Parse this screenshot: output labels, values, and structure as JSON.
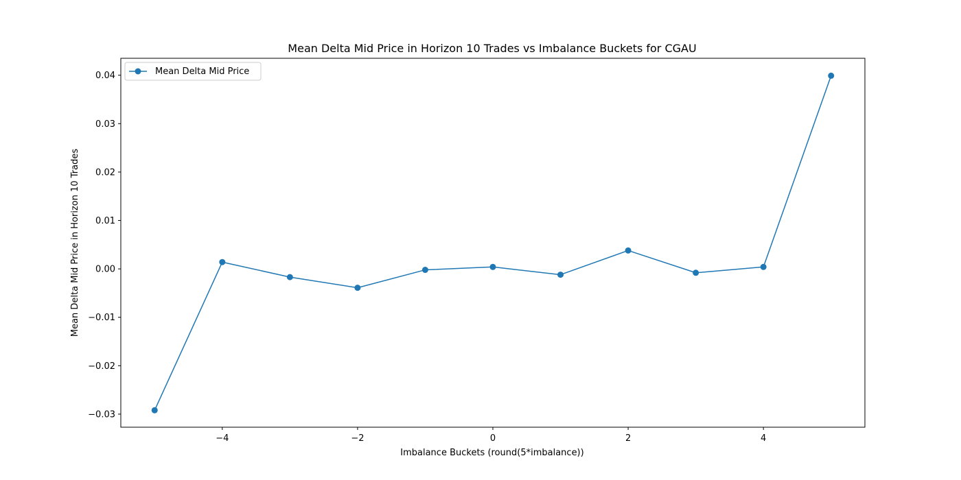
{
  "chart_data": {
    "type": "line",
    "title": "Mean Delta Mid Price in Horizon 10 Trades vs Imbalance Buckets for CGAU",
    "xlabel": "Imbalance Buckets (round(5*imbalance))",
    "ylabel": "Mean Delta Mid Price in Horizon 10 Trades",
    "xlim": [
      -5.5,
      5.5
    ],
    "ylim": [
      -0.0327,
      0.0435
    ],
    "x_ticks": [
      -4,
      -2,
      0,
      2,
      4
    ],
    "x_tick_labels": [
      "−4",
      "−2",
      "0",
      "2",
      "4"
    ],
    "y_ticks": [
      -0.03,
      -0.02,
      -0.01,
      0.0,
      0.01,
      0.02,
      0.03,
      0.04
    ],
    "y_tick_labels": [
      "−0.03",
      "−0.02",
      "−0.01",
      "0.00",
      "0.01",
      "0.02",
      "0.03",
      "0.04"
    ],
    "grid": false,
    "legend_position": "top-left",
    "series": [
      {
        "name": "Mean Delta Mid Price",
        "color": "#1f77b4",
        "marker": "circle",
        "x": [
          -5,
          -4,
          -3,
          -2,
          -1,
          0,
          1,
          2,
          3,
          4,
          5
        ],
        "y": [
          -0.0292,
          0.0014,
          -0.0017,
          -0.0039,
          -0.0002,
          0.0004,
          -0.0012,
          0.0038,
          -0.0008,
          0.0004,
          0.0399
        ]
      }
    ]
  }
}
